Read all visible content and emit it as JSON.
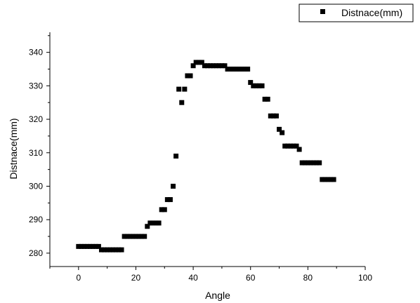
{
  "chart_data": {
    "type": "scatter",
    "title": "",
    "xlabel": "Angle",
    "ylabel": "Distnace(mm)",
    "xlim": [
      -10,
      100
    ],
    "ylim": [
      276,
      346
    ],
    "xticks": [
      0,
      20,
      40,
      60,
      80,
      100
    ],
    "yticks": [
      280,
      290,
      300,
      310,
      320,
      330,
      340
    ],
    "grid": false,
    "legend_position": "top-right",
    "marker": "square",
    "marker_color": "#000000",
    "series": [
      {
        "name": "Distnace(mm)",
        "x": [
          0,
          1,
          2,
          3,
          4,
          5,
          6,
          7,
          8,
          9,
          10,
          11,
          12,
          13,
          14,
          15,
          16,
          17,
          18,
          19,
          20,
          21,
          22,
          23,
          24,
          25,
          26,
          27,
          28,
          29,
          30,
          31,
          32,
          33,
          34,
          35,
          36,
          37,
          38,
          39,
          40,
          41,
          42,
          43,
          44,
          45,
          46,
          47,
          48,
          49,
          50,
          51,
          52,
          53,
          54,
          55,
          56,
          57,
          58,
          59,
          60,
          61,
          62,
          63,
          64,
          65,
          66,
          67,
          68,
          69,
          70,
          71,
          72,
          73,
          74,
          75,
          76,
          77,
          78,
          79,
          80,
          81,
          82,
          83,
          84,
          85,
          86,
          87,
          88,
          89
        ],
        "y": [
          282,
          282,
          282,
          282,
          282,
          282,
          282,
          282,
          281,
          281,
          281,
          281,
          281,
          281,
          281,
          281,
          285,
          285,
          285,
          285,
          285,
          285,
          285,
          285,
          288,
          289,
          289,
          289,
          289,
          293,
          293,
          296,
          296,
          300,
          309,
          329,
          325,
          329,
          333,
          333,
          336,
          337,
          337,
          337,
          336,
          336,
          336,
          336,
          336,
          336,
          336,
          336,
          335,
          335,
          335,
          335,
          335,
          335,
          335,
          335,
          331,
          330,
          330,
          330,
          330,
          326,
          326,
          321,
          321,
          321,
          317,
          316,
          312,
          312,
          312,
          312,
          312,
          311,
          307,
          307,
          307,
          307,
          307,
          307,
          307,
          302,
          302,
          302,
          302,
          302
        ]
      }
    ]
  }
}
